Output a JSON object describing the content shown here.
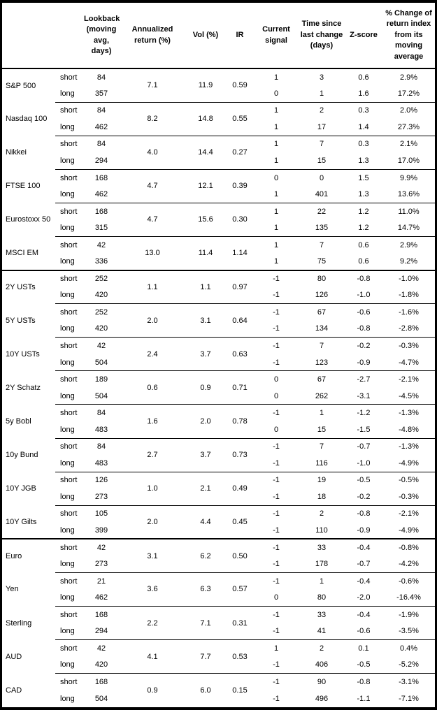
{
  "colors": {
    "border": "#000000",
    "background": "#ffffff",
    "text": "#000000"
  },
  "header": {
    "instrument": "",
    "horizon": "",
    "lookback": "Lookback (moving avg, days)",
    "annualized_return": "Annualized return (%)",
    "vol": "Vol (%)",
    "ir": "IR",
    "current_signal": "Current signal",
    "time_since": "Time since last change (days)",
    "zscore": "Z-score",
    "pct_change": "% Change of return index from its moving average"
  },
  "sections": [
    {
      "groups": [
        {
          "name": "S&P 500",
          "annualized_return": "7.1",
          "vol": "11.9",
          "ir": "0.59",
          "rows": [
            {
              "horizon": "short",
              "lookback": "84",
              "signal": "1",
              "time_since": "3",
              "zscore": "0.6",
              "pct_change": "2.9%"
            },
            {
              "horizon": "long",
              "lookback": "357",
              "signal": "0",
              "time_since": "1",
              "zscore": "1.6",
              "pct_change": "17.2%"
            }
          ]
        },
        {
          "name": "Nasdaq 100",
          "annualized_return": "8.2",
          "vol": "14.8",
          "ir": "0.55",
          "rows": [
            {
              "horizon": "short",
              "lookback": "84",
              "signal": "1",
              "time_since": "2",
              "zscore": "0.3",
              "pct_change": "2.0%"
            },
            {
              "horizon": "long",
              "lookback": "462",
              "signal": "1",
              "time_since": "17",
              "zscore": "1.4",
              "pct_change": "27.3%"
            }
          ]
        },
        {
          "name": "Nikkei",
          "annualized_return": "4.0",
          "vol": "14.4",
          "ir": "0.27",
          "rows": [
            {
              "horizon": "short",
              "lookback": "84",
              "signal": "1",
              "time_since": "7",
              "zscore": "0.3",
              "pct_change": "2.1%"
            },
            {
              "horizon": "long",
              "lookback": "294",
              "signal": "1",
              "time_since": "15",
              "zscore": "1.3",
              "pct_change": "17.0%"
            }
          ]
        },
        {
          "name": "FTSE 100",
          "annualized_return": "4.7",
          "vol": "12.1",
          "ir": "0.39",
          "rows": [
            {
              "horizon": "short",
              "lookback": "168",
              "signal": "0",
              "time_since": "0",
              "zscore": "1.5",
              "pct_change": "9.9%"
            },
            {
              "horizon": "long",
              "lookback": "462",
              "signal": "1",
              "time_since": "401",
              "zscore": "1.3",
              "pct_change": "13.6%"
            }
          ]
        },
        {
          "name": "Eurostoxx 50",
          "annualized_return": "4.7",
          "vol": "15.6",
          "ir": "0.30",
          "rows": [
            {
              "horizon": "short",
              "lookback": "168",
              "signal": "1",
              "time_since": "22",
              "zscore": "1.2",
              "pct_change": "11.0%"
            },
            {
              "horizon": "long",
              "lookback": "315",
              "signal": "1",
              "time_since": "135",
              "zscore": "1.2",
              "pct_change": "14.7%"
            }
          ]
        },
        {
          "name": "MSCI EM",
          "annualized_return": "13.0",
          "vol": "11.4",
          "ir": "1.14",
          "rows": [
            {
              "horizon": "short",
              "lookback": "42",
              "signal": "1",
              "time_since": "7",
              "zscore": "0.6",
              "pct_change": "2.9%"
            },
            {
              "horizon": "long",
              "lookback": "336",
              "signal": "1",
              "time_since": "75",
              "zscore": "0.6",
              "pct_change": "9.2%"
            }
          ]
        }
      ]
    },
    {
      "groups": [
        {
          "name": "2Y USTs",
          "annualized_return": "1.1",
          "vol": "1.1",
          "ir": "0.97",
          "rows": [
            {
              "horizon": "short",
              "lookback": "252",
              "signal": "-1",
              "time_since": "80",
              "zscore": "-0.8",
              "pct_change": "-1.0%"
            },
            {
              "horizon": "long",
              "lookback": "420",
              "signal": "-1",
              "time_since": "126",
              "zscore": "-1.0",
              "pct_change": "-1.8%"
            }
          ]
        },
        {
          "name": "5Y USTs",
          "annualized_return": "2.0",
          "vol": "3.1",
          "ir": "0.64",
          "rows": [
            {
              "horizon": "short",
              "lookback": "252",
              "signal": "-1",
              "time_since": "67",
              "zscore": "-0.6",
              "pct_change": "-1.6%"
            },
            {
              "horizon": "long",
              "lookback": "420",
              "signal": "-1",
              "time_since": "134",
              "zscore": "-0.8",
              "pct_change": "-2.8%"
            }
          ]
        },
        {
          "name": "10Y USTs",
          "annualized_return": "2.4",
          "vol": "3.7",
          "ir": "0.63",
          "rows": [
            {
              "horizon": "short",
              "lookback": "42",
              "signal": "-1",
              "time_since": "7",
              "zscore": "-0.2",
              "pct_change": "-0.3%"
            },
            {
              "horizon": "long",
              "lookback": "504",
              "signal": "-1",
              "time_since": "123",
              "zscore": "-0.9",
              "pct_change": "-4.7%"
            }
          ]
        },
        {
          "name": "2Y Schatz",
          "annualized_return": "0.6",
          "vol": "0.9",
          "ir": "0.71",
          "rows": [
            {
              "horizon": "short",
              "lookback": "189",
              "signal": "0",
              "time_since": "67",
              "zscore": "-2.7",
              "pct_change": "-2.1%"
            },
            {
              "horizon": "long",
              "lookback": "504",
              "signal": "0",
              "time_since": "262",
              "zscore": "-3.1",
              "pct_change": "-4.5%"
            }
          ]
        },
        {
          "name": "5y Bobl",
          "annualized_return": "1.6",
          "vol": "2.0",
          "ir": "0.78",
          "rows": [
            {
              "horizon": "short",
              "lookback": "84",
              "signal": "-1",
              "time_since": "1",
              "zscore": "-1.2",
              "pct_change": "-1.3%"
            },
            {
              "horizon": "long",
              "lookback": "483",
              "signal": "0",
              "time_since": "15",
              "zscore": "-1.5",
              "pct_change": "-4.8%"
            }
          ]
        },
        {
          "name": "10y Bund",
          "annualized_return": "2.7",
          "vol": "3.7",
          "ir": "0.73",
          "rows": [
            {
              "horizon": "short",
              "lookback": "84",
              "signal": "-1",
              "time_since": "7",
              "zscore": "-0.7",
              "pct_change": "-1.3%"
            },
            {
              "horizon": "long",
              "lookback": "483",
              "signal": "-1",
              "time_since": "116",
              "zscore": "-1.0",
              "pct_change": "-4.9%"
            }
          ]
        },
        {
          "name": "10Y JGB",
          "annualized_return": "1.0",
          "vol": "2.1",
          "ir": "0.49",
          "rows": [
            {
              "horizon": "short",
              "lookback": "126",
              "signal": "-1",
              "time_since": "19",
              "zscore": "-0.5",
              "pct_change": "-0.5%"
            },
            {
              "horizon": "long",
              "lookback": "273",
              "signal": "-1",
              "time_since": "18",
              "zscore": "-0.2",
              "pct_change": "-0.3%"
            }
          ]
        },
        {
          "name": "10Y Gilts",
          "annualized_return": "2.0",
          "vol": "4.4",
          "ir": "0.45",
          "rows": [
            {
              "horizon": "short",
              "lookback": "105",
              "signal": "-1",
              "time_since": "2",
              "zscore": "-0.8",
              "pct_change": "-2.1%"
            },
            {
              "horizon": "long",
              "lookback": "399",
              "signal": "-1",
              "time_since": "110",
              "zscore": "-0.9",
              "pct_change": "-4.9%"
            }
          ]
        }
      ]
    },
    {
      "groups": [
        {
          "name": "Euro",
          "annualized_return": "3.1",
          "vol": "6.2",
          "ir": "0.50",
          "rows": [
            {
              "horizon": "short",
              "lookback": "42",
              "signal": "-1",
              "time_since": "33",
              "zscore": "-0.4",
              "pct_change": "-0.8%"
            },
            {
              "horizon": "long",
              "lookback": "273",
              "signal": "-1",
              "time_since": "178",
              "zscore": "-0.7",
              "pct_change": "-4.2%"
            }
          ]
        },
        {
          "name": "Yen",
          "annualized_return": "3.6",
          "vol": "6.3",
          "ir": "0.57",
          "rows": [
            {
              "horizon": "short",
              "lookback": "21",
              "signal": "-1",
              "time_since": "1",
              "zscore": "-0.4",
              "pct_change": "-0.6%"
            },
            {
              "horizon": "long",
              "lookback": "462",
              "signal": "0",
              "time_since": "80",
              "zscore": "-2.0",
              "pct_change": "-16.4%"
            }
          ]
        },
        {
          "name": "Sterling",
          "annualized_return": "2.2",
          "vol": "7.1",
          "ir": "0.31",
          "rows": [
            {
              "horizon": "short",
              "lookback": "168",
              "signal": "-1",
              "time_since": "33",
              "zscore": "-0.4",
              "pct_change": "-1.9%"
            },
            {
              "horizon": "long",
              "lookback": "294",
              "signal": "-1",
              "time_since": "41",
              "zscore": "-0.6",
              "pct_change": "-3.5%"
            }
          ]
        },
        {
          "name": "AUD",
          "annualized_return": "4.1",
          "vol": "7.7",
          "ir": "0.53",
          "rows": [
            {
              "horizon": "short",
              "lookback": "42",
              "signal": "1",
              "time_since": "2",
              "zscore": "0.1",
              "pct_change": "0.4%"
            },
            {
              "horizon": "long",
              "lookback": "420",
              "signal": "-1",
              "time_since": "406",
              "zscore": "-0.5",
              "pct_change": "-5.2%"
            }
          ]
        },
        {
          "name": "CAD",
          "annualized_return": "0.9",
          "vol": "6.0",
          "ir": "0.15",
          "rows": [
            {
              "horizon": "short",
              "lookback": "168",
              "signal": "-1",
              "time_since": "90",
              "zscore": "-0.8",
              "pct_change": "-3.1%"
            },
            {
              "horizon": "long",
              "lookback": "504",
              "signal": "-1",
              "time_since": "496",
              "zscore": "-1.1",
              "pct_change": "-7.1%"
            }
          ]
        }
      ]
    }
  ]
}
